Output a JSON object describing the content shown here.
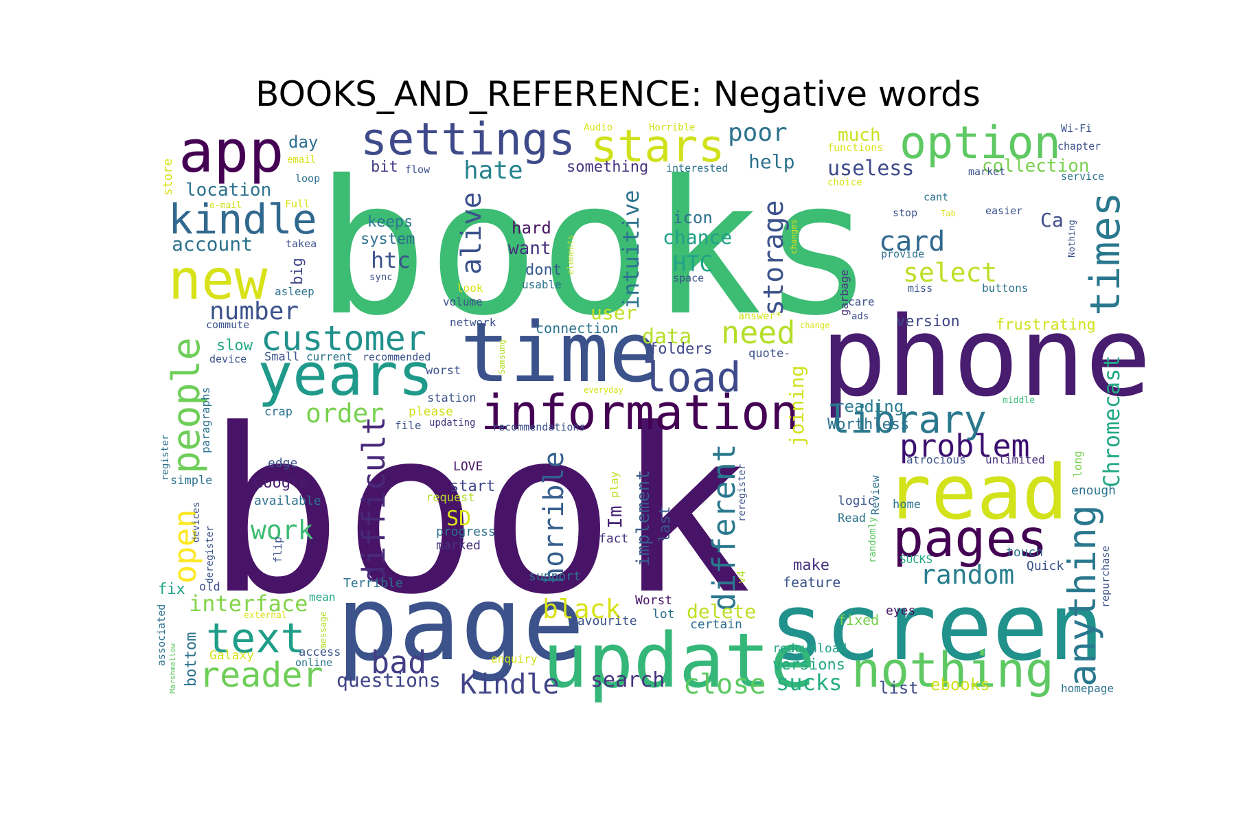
{
  "title": "BOOKS_AND_REFERENCE: Negative words",
  "palette": "viridis",
  "words": [
    {
      "text": "book",
      "color": "#481467",
      "weight": 100
    },
    {
      "text": "books",
      "color": "#3dbc74",
      "weight": 80
    },
    {
      "text": "phone",
      "color": "#481c6e",
      "weight": 38
    },
    {
      "text": "page",
      "color": "#3b528b",
      "weight": 36
    },
    {
      "text": "screen",
      "color": "#21918c",
      "weight": 33
    },
    {
      "text": "time",
      "color": "#3b528b",
      "weight": 32
    },
    {
      "text": "update",
      "color": "#35b779",
      "weight": 27
    },
    {
      "text": "read",
      "color": "#d2e21b",
      "weight": 27
    },
    {
      "text": "years",
      "color": "#1f9a8a",
      "weight": 24
    },
    {
      "text": "information",
      "color": "#440154",
      "weight": 22
    },
    {
      "text": "app",
      "color": "#440154",
      "weight": 22
    },
    {
      "text": "pages",
      "color": "#440154",
      "weight": 21
    },
    {
      "text": "nothing",
      "color": "#5ec962",
      "weight": 21
    },
    {
      "text": "new",
      "color": "#d8e219",
      "weight": 21
    },
    {
      "text": "option",
      "color": "#5ec962",
      "weight": 18
    },
    {
      "text": "settings",
      "color": "#3e4a89",
      "weight": 17
    },
    {
      "text": "stars",
      "color": "#d0e11c",
      "weight": 17
    },
    {
      "text": "kindle",
      "color": "#31688e",
      "weight": 17
    },
    {
      "text": "text",
      "color": "#1f9e89",
      "weight": 17
    },
    {
      "text": "customer",
      "color": "#21918c",
      "weight": 15
    },
    {
      "text": "load",
      "color": "#3e4a89",
      "weight": 15
    },
    {
      "text": "library",
      "color": "#2a788e",
      "weight": 15
    },
    {
      "text": "times",
      "color": "#2a788e",
      "weight": 15
    },
    {
      "text": "people",
      "color": "#6ece58",
      "weight": 15
    },
    {
      "text": "anything",
      "color": "#2a788e",
      "weight": 15
    },
    {
      "text": "reader",
      "color": "#6ece58",
      "weight": 14
    },
    {
      "text": "problem",
      "color": "#3b0f70",
      "weight": 13
    },
    {
      "text": "bad",
      "color": "#433e85",
      "weight": 13
    },
    {
      "text": "difficult",
      "color": "#482878",
      "weight": 13
    },
    {
      "text": "different",
      "color": "#2a788e",
      "weight": 13
    },
    {
      "text": "open",
      "color": "#fde725",
      "weight": 13
    },
    {
      "text": "Kindle",
      "color": "#414487",
      "weight": 12
    },
    {
      "text": "black",
      "color": "#d8e219",
      "weight": 12
    },
    {
      "text": "storage",
      "color": "#3b528b",
      "weight": 12
    },
    {
      "text": "horrible",
      "color": "#355f8d",
      "weight": 12
    },
    {
      "text": "alive",
      "color": "#3b528b",
      "weight": 12
    },
    {
      "text": "order",
      "color": "#7ad151",
      "weight": 11
    },
    {
      "text": "need",
      "color": "#b5de2b",
      "weight": 11
    },
    {
      "text": "close",
      "color": "#5ec962",
      "weight": 11
    },
    {
      "text": "random",
      "color": "#287d8e",
      "weight": 11
    },
    {
      "text": "intuitive",
      "color": "#2c728e",
      "weight": 11
    },
    {
      "text": "Chromecast",
      "color": "#22a884",
      "weight": 11
    },
    {
      "text": "card",
      "color": "#31688e",
      "weight": 11
    },
    {
      "text": "select",
      "color": "#bddf26",
      "weight": 11
    },
    {
      "text": "hate",
      "color": "#26828e",
      "weight": 11
    },
    {
      "text": "poor",
      "color": "#2c728e",
      "weight": 10
    },
    {
      "text": "number",
      "color": "#3b528b",
      "weight": 10
    },
    {
      "text": "work",
      "color": "#3dbc74",
      "weight": 10
    },
    {
      "text": "interface",
      "color": "#84d44b",
      "weight": 10
    },
    {
      "text": "sucks",
      "color": "#26ad81",
      "weight": 10
    },
    {
      "text": "questions",
      "color": "#414487",
      "weight": 10
    },
    {
      "text": "search",
      "color": "#46337f",
      "weight": 10
    },
    {
      "text": "useless",
      "color": "#3e4a89",
      "weight": 9
    },
    {
      "text": "user",
      "color": "#c2df23",
      "weight": 9
    },
    {
      "text": "data",
      "color": "#b5de2b",
      "weight": 9
    },
    {
      "text": "delete",
      "color": "#bddf26",
      "weight": 9
    },
    {
      "text": "joining",
      "color": "#d0e11c",
      "weight": 9
    },
    {
      "text": "account",
      "color": "#2c728e",
      "weight": 9
    },
    {
      "text": "implement",
      "color": "#375a8c",
      "weight": 9
    },
    {
      "text": "SD",
      "color": "#d8e219",
      "weight": 9
    },
    {
      "text": "HTC",
      "color": "#20a386",
      "weight": 9
    },
    {
      "text": "chance",
      "color": "#1fa188",
      "weight": 9
    },
    {
      "text": "htc",
      "color": "#3b528b",
      "weight": 9
    },
    {
      "text": "help",
      "color": "#2c728e",
      "weight": 9
    },
    {
      "text": "collection",
      "color": "#7ad151",
      "weight": 8
    },
    {
      "text": "much",
      "color": "#c8e020",
      "weight": 8
    },
    {
      "text": "location",
      "color": "#2c728e",
      "weight": 8
    },
    {
      "text": "want",
      "color": "#46327e",
      "weight": 8
    },
    {
      "text": "hard",
      "color": "#471365",
      "weight": 8
    },
    {
      "text": "icon",
      "color": "#2d718e",
      "weight": 8
    },
    {
      "text": "keeps",
      "color": "#2a788e",
      "weight": 8
    },
    {
      "text": "system",
      "color": "#2e6e8e",
      "weight": 8
    },
    {
      "text": "big",
      "color": "#404688",
      "weight": 8
    },
    {
      "text": "day",
      "color": "#2e6e8e",
      "weight": 8
    },
    {
      "text": "bit",
      "color": "#433e85",
      "weight": 8
    },
    {
      "text": "dont",
      "color": "#365c8d",
      "weight": 8
    },
    {
      "text": "Im",
      "color": "#482475",
      "weight": 8
    },
    {
      "text": "last",
      "color": "#39568c",
      "weight": 8
    },
    {
      "text": "Ca",
      "color": "#3d4e8a",
      "weight": 8
    },
    {
      "text": "something",
      "color": "#46327e",
      "weight": 7
    },
    {
      "text": "folders",
      "color": "#3f4889",
      "weight": 7
    },
    {
      "text": "reading",
      "color": "#287c8e",
      "weight": 7
    },
    {
      "text": "Worthless",
      "color": "#2c728e",
      "weight": 7
    },
    {
      "text": "Google",
      "color": "#481d6f",
      "weight": 7
    },
    {
      "text": "start",
      "color": "#404688",
      "weight": 7
    },
    {
      "text": "make",
      "color": "#46327e",
      "weight": 7
    },
    {
      "text": "feature",
      "color": "#3b528b",
      "weight": 7
    },
    {
      "text": "fix",
      "color": "#20a386",
      "weight": 7
    },
    {
      "text": "bottom",
      "color": "#2c728e",
      "weight": 7
    },
    {
      "text": "slow",
      "color": "#22a884",
      "weight": 7
    },
    {
      "text": "connection",
      "color": "#2c728e",
      "weight": 7
    },
    {
      "text": "version",
      "color": "#404688",
      "weight": 7
    },
    {
      "text": "frustrating",
      "color": "#d0e11c",
      "weight": 7
    },
    {
      "text": "versions",
      "color": "#22a884",
      "weight": 7
    },
    {
      "text": "redownload",
      "color": "#1fa188",
      "weight": 6
    },
    {
      "text": "ebooks",
      "color": "#d0e11c",
      "weight": 7
    },
    {
      "text": "list",
      "color": "#3e4a89",
      "weight": 7
    },
    {
      "text": "paragraphs",
      "color": "#2c728e",
      "weight": 6
    },
    {
      "text": "Galaxy",
      "color": "#d2e21b",
      "weight": 6
    },
    {
      "text": "enough",
      "color": "#2c728e",
      "weight": 6
    },
    {
      "text": "Quick",
      "color": "#3b528b",
      "weight": 6
    },
    {
      "text": "touch",
      "color": "#2c728e",
      "weight": 6
    },
    {
      "text": "fixed",
      "color": "#7ad151",
      "weight": 6
    },
    {
      "text": "eyes",
      "color": "#481467",
      "weight": 6
    },
    {
      "text": "Terrible",
      "color": "#2c728e",
      "weight": 6
    },
    {
      "text": "support",
      "color": "#2c728e",
      "weight": 6
    },
    {
      "text": "favourite",
      "color": "#3b528b",
      "weight": 6
    },
    {
      "text": "certain",
      "color": "#2e6e8e",
      "weight": 6
    },
    {
      "text": "lot",
      "color": "#2c728e",
      "weight": 6
    },
    {
      "text": "Worst",
      "color": "#481467",
      "weight": 6
    },
    {
      "text": "progress",
      "color": "#2c728e",
      "weight": 6
    },
    {
      "text": "marked",
      "color": "#46327e",
      "weight": 6
    },
    {
      "text": "fact",
      "color": "#46327e",
      "weight": 6
    },
    {
      "text": "available",
      "color": "#2c728e",
      "weight": 6
    },
    {
      "text": "edge",
      "color": "#3b528b",
      "weight": 6
    },
    {
      "text": "LOVE",
      "color": "#481467",
      "weight": 6
    },
    {
      "text": "request",
      "color": "#b5de2b",
      "weight": 6
    },
    {
      "text": "play",
      "color": "#bddf26",
      "weight": 6
    },
    {
      "text": "logic",
      "color": "#3b528b",
      "weight": 6
    },
    {
      "text": "home",
      "color": "#2c728e",
      "weight": 6
    },
    {
      "text": "Read",
      "color": "#2c728e",
      "weight": 6
    },
    {
      "text": "Review",
      "color": "#2c728e",
      "weight": 6
    },
    {
      "text": "randomly",
      "color": "#5ec962",
      "weight": 5
    },
    {
      "text": "SUCKS",
      "color": "#22a884",
      "weight": 6
    },
    {
      "text": "long",
      "color": "#7ad151",
      "weight": 5
    },
    {
      "text": "atrocious",
      "color": "#3b528b",
      "weight": 6
    },
    {
      "text": "unlimited",
      "color": "#46327e",
      "weight": 6
    },
    {
      "text": "reregister",
      "color": "#3b528b",
      "weight": 5
    },
    {
      "text": "repurchase",
      "color": "#3b528b",
      "weight": 5
    },
    {
      "text": "homepage",
      "color": "#2c728e",
      "weight": 5
    },
    {
      "text": "mean",
      "color": "#22a884",
      "weight": 6
    },
    {
      "text": "external",
      "color": "#d8e219",
      "weight": 5
    },
    {
      "text": "message",
      "color": "#b5de2b",
      "weight": 5
    },
    {
      "text": "access",
      "color": "#3b528b",
      "weight": 6
    },
    {
      "text": "online",
      "color": "#2c728e",
      "weight": 5
    },
    {
      "text": "enquiry",
      "color": "#d0e11c",
      "weight": 6
    },
    {
      "text": "associated",
      "color": "#2c728e",
      "weight": 5
    },
    {
      "text": "Marshmallow",
      "color": "#5ec962",
      "weight": 4
    },
    {
      "text": "old",
      "color": "#3b528b",
      "weight": 6
    },
    {
      "text": "v4",
      "color": "#b5de2b",
      "weight": 6
    },
    {
      "text": "flip",
      "color": "#3b528b",
      "weight": 6
    },
    {
      "text": "devices",
      "color": "#3b528b",
      "weight": 5
    },
    {
      "text": "deregister",
      "color": "#3b528b",
      "weight": 5
    },
    {
      "text": "simple",
      "color": "#2c728e",
      "weight": 6
    },
    {
      "text": "register",
      "color": "#2c728e",
      "weight": 5
    },
    {
      "text": "crap",
      "color": "#2c728e",
      "weight": 6
    },
    {
      "text": "please",
      "color": "#d0e11c",
      "weight": 6
    },
    {
      "text": "file",
      "color": "#3b528b",
      "weight": 6
    },
    {
      "text": "updating",
      "color": "#46327e",
      "weight": 5
    },
    {
      "text": "recommendations",
      "color": "#3b528b",
      "weight": 5
    },
    {
      "text": "station",
      "color": "#3b528b",
      "weight": 6
    },
    {
      "text": "worst",
      "color": "#3b528b",
      "weight": 6
    },
    {
      "text": "everyday",
      "color": "#d8e219",
      "weight": 4
    },
    {
      "text": "Samsung",
      "color": "#b5de2b",
      "weight": 4
    },
    {
      "text": "Small",
      "color": "#3b528b",
      "weight": 6
    },
    {
      "text": "current",
      "color": "#2c728e",
      "weight": 6
    },
    {
      "text": "recommended",
      "color": "#3b528b",
      "weight": 5
    },
    {
      "text": "device",
      "color": "#3b528b",
      "weight": 5
    },
    {
      "text": "commute",
      "color": "#3b528b",
      "weight": 5
    },
    {
      "text": "network",
      "color": "#3b528b",
      "weight": 6
    },
    {
      "text": "volume",
      "color": "#3b528b",
      "weight": 6
    },
    {
      "text": "look",
      "color": "#d8e219",
      "weight": 6
    },
    {
      "text": "usable",
      "color": "#2c728e",
      "weight": 5
    },
    {
      "text": "quote-",
      "color": "#3b528b",
      "weight": 6
    },
    {
      "text": "answer*",
      "color": "#d0e11c",
      "weight": 5
    },
    {
      "text": "change",
      "color": "#d8e219",
      "weight": 4
    },
    {
      "text": "ads",
      "color": "#3b528b",
      "weight": 5
    },
    {
      "text": "care",
      "color": "#3b528b",
      "weight": 6
    },
    {
      "text": "garbage",
      "color": "#46327e",
      "weight": 6
    },
    {
      "text": "space",
      "color": "#3b528b",
      "weight": 6
    },
    {
      "text": "sync",
      "color": "#3b528b",
      "weight": 5
    },
    {
      "text": "asleep",
      "color": "#2c728e",
      "weight": 6
    },
    {
      "text": "takea",
      "color": "#3b528b",
      "weight": 5
    },
    {
      "text": "Full",
      "color": "#d8e219",
      "weight": 6
    },
    {
      "text": "e-mail",
      "color": "#d0e11c",
      "weight": 5
    },
    {
      "text": "loop",
      "color": "#2c728e",
      "weight": 5
    },
    {
      "text": "email",
      "color": "#d8e219",
      "weight": 5
    },
    {
      "text": "store",
      "color": "#d8e219",
      "weight": 7
    },
    {
      "text": "flow",
      "color": "#3b528b",
      "weight": 5
    },
    {
      "text": "interested",
      "color": "#2c728e",
      "weight": 5
    },
    {
      "text": "Audio",
      "color": "#d8e219",
      "weight": 5
    },
    {
      "text": "Horrible",
      "color": "#d0e11c",
      "weight": 5
    },
    {
      "text": "functions",
      "color": "#d8e219",
      "weight": 5
    },
    {
      "text": "choice",
      "color": "#d8e219",
      "weight": 5
    },
    {
      "text": "elements",
      "color": "#b5de2b",
      "weight": 4
    },
    {
      "text": "changes",
      "color": "#d8e219",
      "weight": 4
    },
    {
      "text": "market",
      "color": "#3b528b",
      "weight": 5
    },
    {
      "text": "cant",
      "color": "#2c728e",
      "weight": 5
    },
    {
      "text": "stop",
      "color": "#3b528b",
      "weight": 5
    },
    {
      "text": "Tab",
      "color": "#d8e219",
      "weight": 4
    },
    {
      "text": "easier",
      "color": "#3b528b",
      "weight": 5
    },
    {
      "text": "provide",
      "color": "#2c728e",
      "weight": 5
    },
    {
      "text": "miss",
      "color": "#3b528b",
      "weight": 5
    },
    {
      "text": "buttons",
      "color": "#2c728e",
      "weight": 5
    },
    {
      "text": "Nothing",
      "color": "#3b528b",
      "weight": 4
    },
    {
      "text": "Wi-Fi",
      "color": "#3b528b",
      "weight": 5
    },
    {
      "text": "chapter",
      "color": "#3b528b",
      "weight": 5
    },
    {
      "text": "service",
      "color": "#2c728e",
      "weight": 5
    },
    {
      "text": "middle",
      "color": "#3dbc74",
      "weight": 4
    }
  ]
}
